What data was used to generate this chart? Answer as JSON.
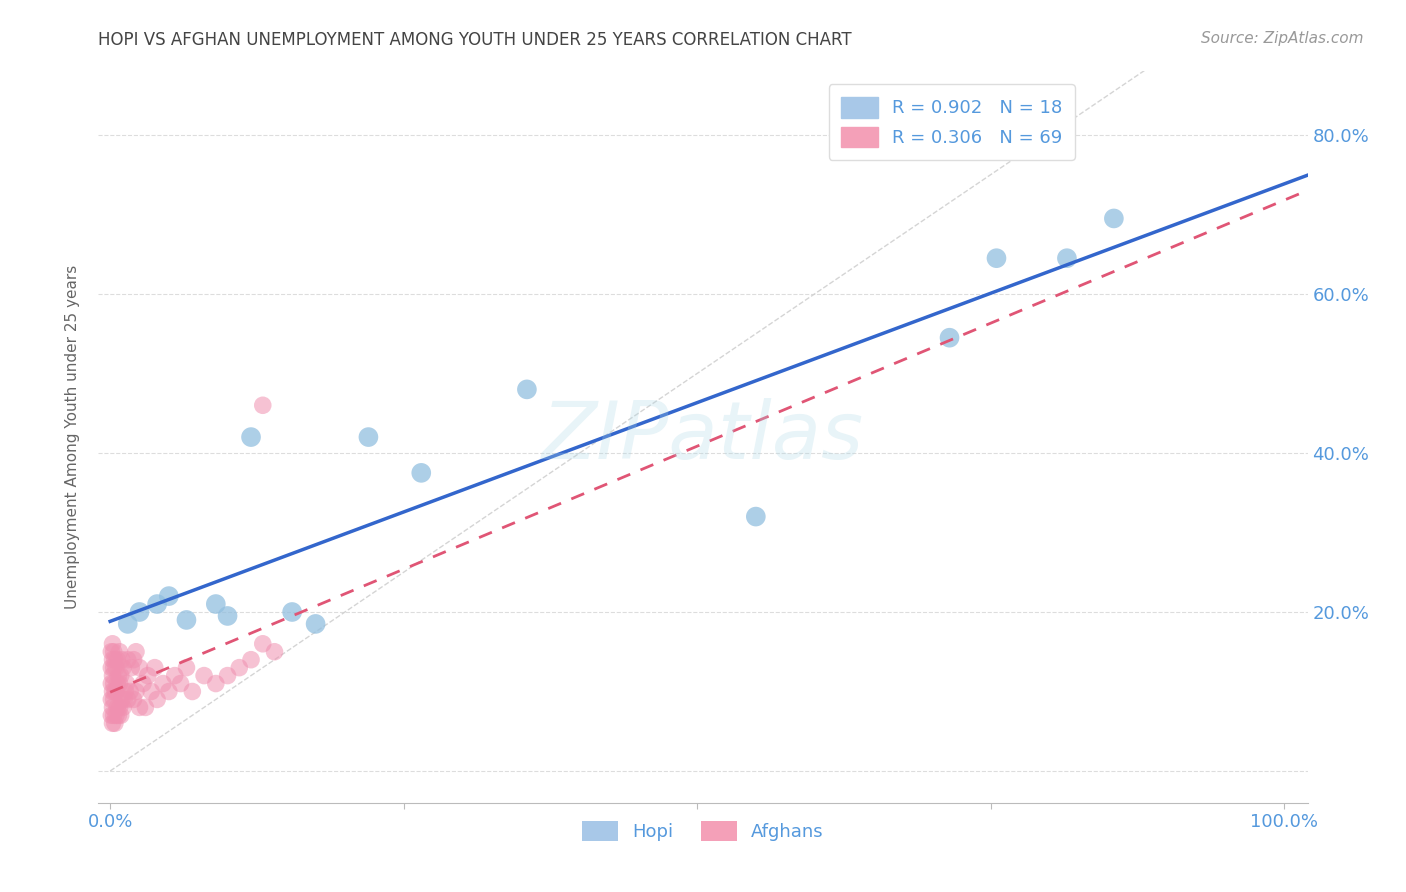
{
  "title": "HOPI VS AFGHAN UNEMPLOYMENT AMONG YOUTH UNDER 25 YEARS CORRELATION CHART",
  "source_text": "Source: ZipAtlas.com",
  "ylabel": "Unemployment Among Youth under 25 years",
  "xlim": [
    -0.01,
    1.02
  ],
  "ylim": [
    -0.04,
    0.88
  ],
  "xticks": [
    0.0,
    0.25,
    0.5,
    0.75,
    1.0
  ],
  "yticks": [
    0.0,
    0.2,
    0.4,
    0.6,
    0.8
  ],
  "xtick_labels": [
    "0.0%",
    "",
    "",
    "",
    "100.0%"
  ],
  "ytick_labels_right": [
    "",
    "20.0%",
    "40.0%",
    "60.0%",
    "80.0%"
  ],
  "watermark": "ZIPatlas",
  "hopi_color": "#92bfdf",
  "afghan_color": "#f090b0",
  "hopi_line_color": "#3366cc",
  "afghan_line_color": "#e05575",
  "ref_line_color": "#d0d0d0",
  "background_color": "#ffffff",
  "grid_color": "#dddddd",
  "title_color": "#444444",
  "axis_color": "#5599dd",
  "hopi_scatter": {
    "x": [
      0.015,
      0.025,
      0.04,
      0.05,
      0.065,
      0.09,
      0.1,
      0.12,
      0.155,
      0.175,
      0.22,
      0.265,
      0.355,
      0.55,
      0.715,
      0.755,
      0.815,
      0.855
    ],
    "y": [
      0.185,
      0.2,
      0.21,
      0.22,
      0.19,
      0.21,
      0.195,
      0.42,
      0.2,
      0.185,
      0.42,
      0.375,
      0.48,
      0.32,
      0.545,
      0.645,
      0.645,
      0.695
    ]
  },
  "afghan_scatter": {
    "x": [
      0.001,
      0.001,
      0.001,
      0.001,
      0.001,
      0.002,
      0.002,
      0.002,
      0.002,
      0.002,
      0.002,
      0.003,
      0.003,
      0.003,
      0.003,
      0.003,
      0.004,
      0.004,
      0.004,
      0.005,
      0.005,
      0.005,
      0.006,
      0.006,
      0.006,
      0.007,
      0.007,
      0.008,
      0.008,
      0.008,
      0.009,
      0.009,
      0.01,
      0.01,
      0.011,
      0.011,
      0.012,
      0.013,
      0.014,
      0.015,
      0.015,
      0.017,
      0.018,
      0.02,
      0.02,
      0.022,
      0.022,
      0.025,
      0.025,
      0.028,
      0.03,
      0.032,
      0.035,
      0.038,
      0.04,
      0.045,
      0.05,
      0.055,
      0.06,
      0.065,
      0.07,
      0.08,
      0.09,
      0.1,
      0.11,
      0.12,
      0.13,
      0.14,
      0.13
    ],
    "y": [
      0.07,
      0.09,
      0.11,
      0.13,
      0.15,
      0.06,
      0.08,
      0.1,
      0.12,
      0.14,
      0.16,
      0.07,
      0.09,
      0.11,
      0.13,
      0.15,
      0.06,
      0.1,
      0.14,
      0.07,
      0.1,
      0.13,
      0.08,
      0.11,
      0.14,
      0.07,
      0.12,
      0.08,
      0.11,
      0.15,
      0.07,
      0.12,
      0.09,
      0.14,
      0.08,
      0.13,
      0.09,
      0.1,
      0.11,
      0.09,
      0.14,
      0.1,
      0.13,
      0.09,
      0.14,
      0.1,
      0.15,
      0.08,
      0.13,
      0.11,
      0.08,
      0.12,
      0.1,
      0.13,
      0.09,
      0.11,
      0.1,
      0.12,
      0.11,
      0.13,
      0.1,
      0.12,
      0.11,
      0.12,
      0.13,
      0.14,
      0.46,
      0.15,
      0.16
    ]
  },
  "hopi_line": {
    "x0": 0.0,
    "x1": 1.0,
    "y0": 0.175,
    "y1": 0.655
  },
  "afghan_line": {
    "x0": 0.0,
    "x1": 0.3,
    "y0": 0.07,
    "y1": 0.27
  }
}
